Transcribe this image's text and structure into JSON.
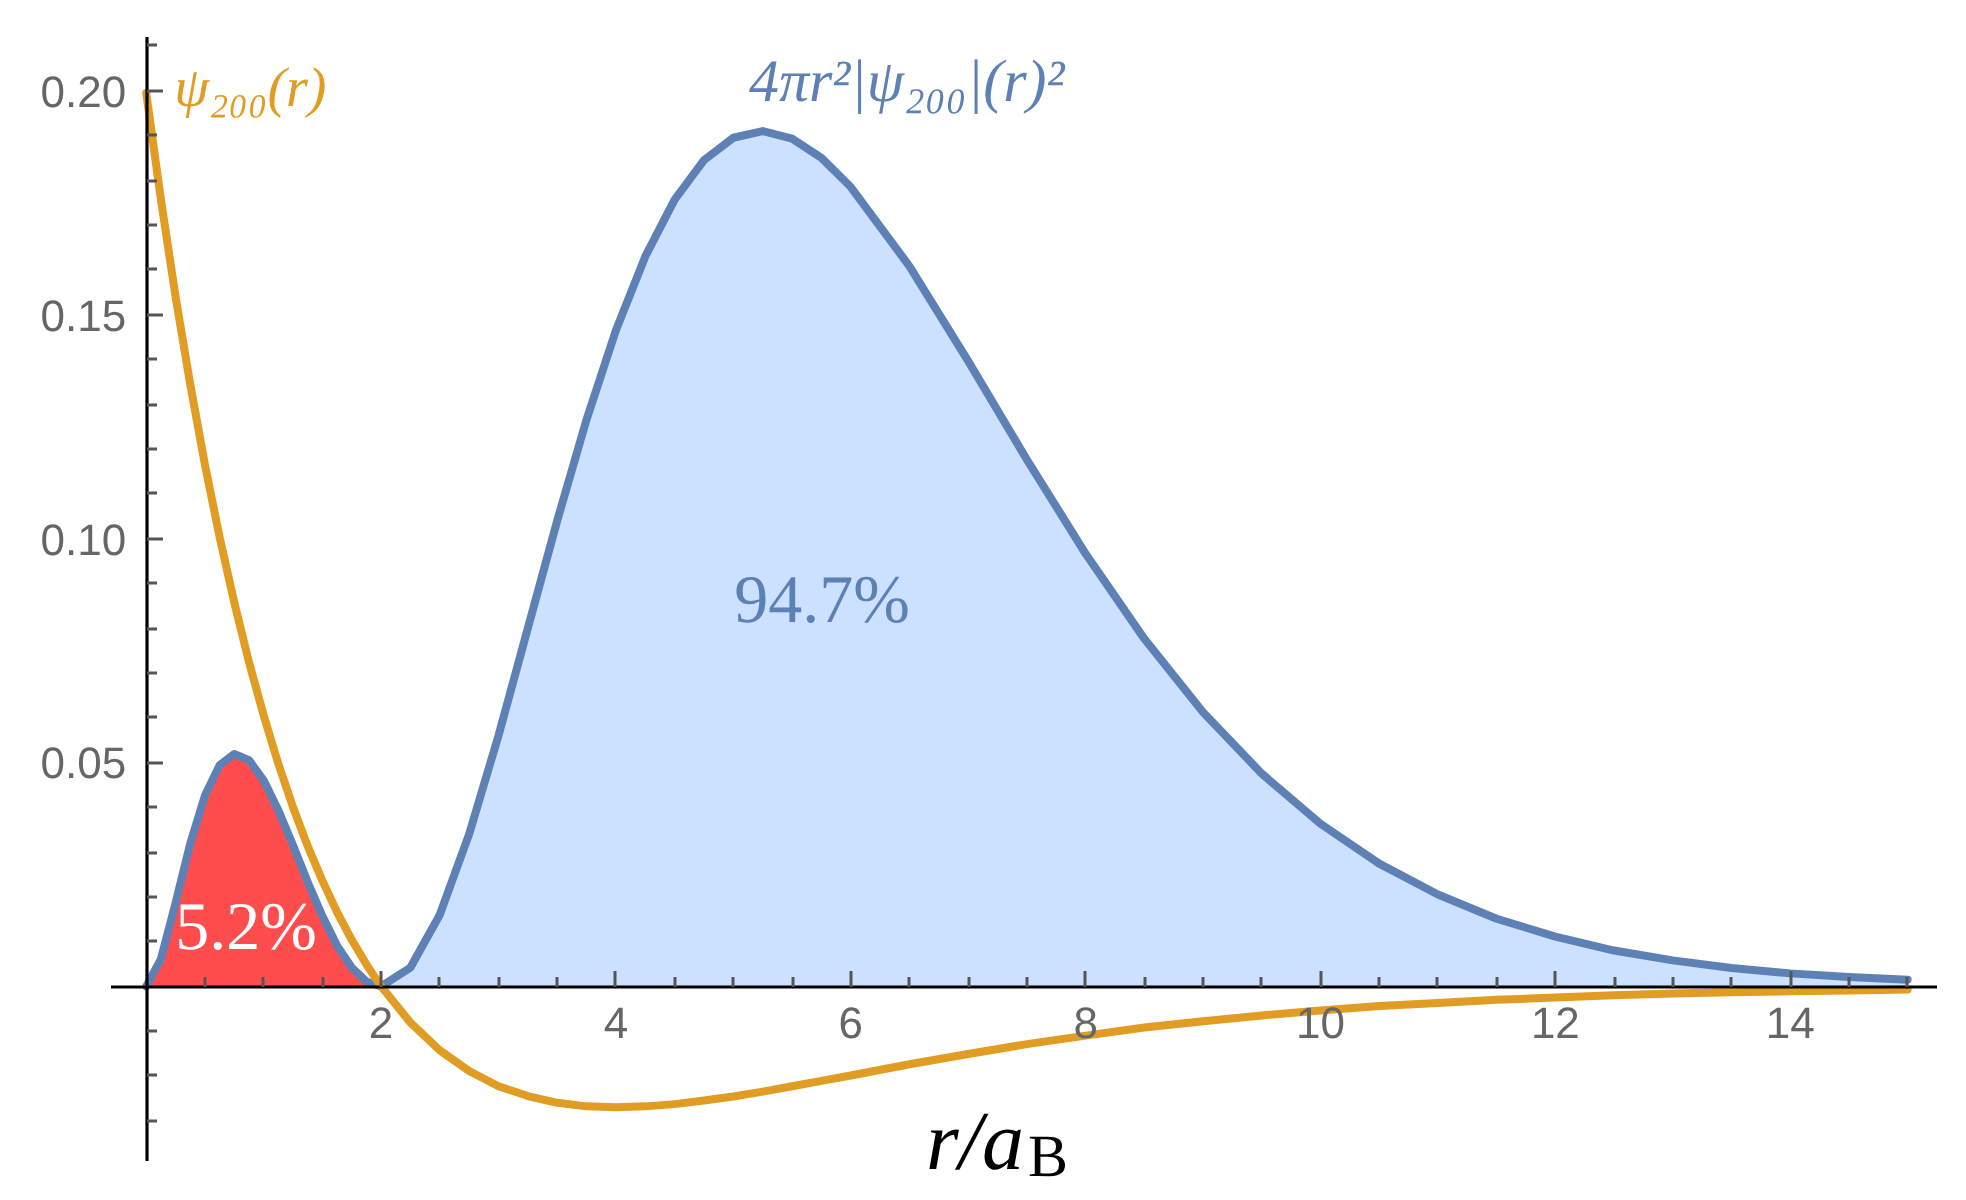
{
  "chart_data": {
    "type": "line",
    "xlabel": "r/a$_{B}$",
    "x": [
      0,
      0.125,
      0.25,
      0.375,
      0.5,
      0.625,
      0.75,
      0.875,
      1,
      1.125,
      1.25,
      1.375,
      1.5,
      1.625,
      1.75,
      1.875,
      2,
      2.25,
      2.5,
      2.75,
      3,
      3.25,
      3.5,
      3.75,
      4,
      4.25,
      4.5,
      4.75,
      5,
      5.25,
      5.5,
      5.75,
      6,
      6.5,
      7,
      7.5,
      8,
      8.5,
      9,
      9.5,
      10,
      10.5,
      11,
      11.5,
      12,
      12.5,
      13,
      13.5,
      14,
      14.5,
      15
    ],
    "series": [
      {
        "type": "area",
        "color": "#ff4d4d",
        "x": [
          0,
          0.125,
          0.25,
          0.375,
          0.5,
          0.625,
          0.75,
          0.875,
          1,
          1.125,
          1.25,
          1.375,
          1.5,
          1.625,
          1.75,
          1.875,
          2
        ],
        "values": [
          0,
          0.0061,
          0.0186,
          0.0319,
          0.0426,
          0.0494,
          0.0519,
          0.0505,
          0.046,
          0.0393,
          0.0315,
          0.0233,
          0.0157,
          0.0091,
          0.0042,
          0.0011,
          0
        ]
      },
      {
        "type": "area",
        "color": "#cce0ff",
        "x": [
          2,
          2.25,
          2.5,
          2.75,
          3,
          3.25,
          3.5,
          3.75,
          4,
          4.25,
          4.5,
          4.75,
          5,
          5.25,
          5.5,
          5.75,
          6,
          6.5,
          7,
          7.5,
          8,
          8.5,
          9,
          9.5,
          10,
          10.5,
          11,
          11.5,
          12,
          12.5,
          13,
          13.5,
          14,
          14.5,
          15
        ],
        "values": [
          0,
          0.0042,
          0.016,
          0.034,
          0.056,
          0.08,
          0.104,
          0.1266,
          0.1465,
          0.163,
          0.1757,
          0.1845,
          0.1895,
          0.191,
          0.1893,
          0.185,
          0.1785,
          0.1608,
          0.1396,
          0.1176,
          0.0966,
          0.0776,
          0.0612,
          0.0475,
          0.0363,
          0.0274,
          0.0205,
          0.0151,
          0.0111,
          0.008,
          0.0058,
          0.0041,
          0.0029,
          0.0021,
          0.0015
        ]
      },
      {
        "name": "4πr²|ψ₂₀₀|(r)²",
        "color": "#5e81b5",
        "values": [
          0,
          0.0061,
          0.0186,
          0.0319,
          0.0426,
          0.0494,
          0.0519,
          0.0505,
          0.046,
          0.0393,
          0.0315,
          0.0233,
          0.0157,
          0.0091,
          0.0042,
          0.0011,
          0,
          0.0042,
          0.016,
          0.034,
          0.056,
          0.08,
          0.104,
          0.1266,
          0.1465,
          0.163,
          0.1757,
          0.1845,
          0.1895,
          0.191,
          0.1893,
          0.185,
          0.1785,
          0.1608,
          0.1396,
          0.1176,
          0.0966,
          0.0776,
          0.0612,
          0.0475,
          0.0363,
          0.0274,
          0.0205,
          0.0151,
          0.0111,
          0.008,
          0.0058,
          0.0041,
          0.0029,
          0.0021,
          0.0015
        ]
      },
      {
        "name": "ψ₂₀₀(r)",
        "color": "#e19c24",
        "values": [
          0.1995,
          0.1757,
          0.154,
          0.1344,
          0.1165,
          0.1003,
          0.0857,
          0.0724,
          0.0605,
          0.0497,
          0.04,
          0.0313,
          0.0236,
          0.0166,
          0.0104,
          0.0049,
          0,
          -0.0081,
          -0.0143,
          -0.0189,
          -0.0223,
          -0.0245,
          -0.026,
          -0.0268,
          -0.027,
          -0.0268,
          -0.0263,
          -0.0255,
          -0.0246,
          -0.0235,
          -0.0223,
          -0.0211,
          -0.0199,
          -0.0174,
          -0.0151,
          -0.0129,
          -0.011,
          -0.0092,
          -0.0078,
          -0.0065,
          -0.0054,
          -0.0044,
          -0.0037,
          -0.003,
          -0.0025,
          -0.002,
          -0.0016,
          -0.0013,
          -0.0011,
          -0.0009,
          -0.0007
        ]
      }
    ],
    "annotations": [
      "5.2%",
      "94.7%"
    ],
    "xlim": [
      -0.3,
      15.25
    ],
    "ylim": [
      -0.039,
      0.212
    ],
    "xticks": [
      {
        "value": 0.5,
        "label": null
      },
      {
        "value": 1,
        "label": null
      },
      {
        "value": 1.5,
        "label": null
      },
      2,
      {
        "value": 2.5,
        "label": null
      },
      {
        "value": 3,
        "label": null
      },
      {
        "value": 3.5,
        "label": null
      },
      4,
      {
        "value": 4.5,
        "label": null
      },
      {
        "value": 5,
        "label": null
      },
      {
        "value": 5.5,
        "label": null
      },
      6,
      {
        "value": 6.5,
        "label": null
      },
      {
        "value": 7,
        "label": null
      },
      {
        "value": 7.5,
        "label": null
      },
      8,
      {
        "value": 8.5,
        "label": null
      },
      {
        "value": 9,
        "label": null
      },
      {
        "value": 9.5,
        "label": null
      },
      10,
      {
        "value": 10.5,
        "label": null
      },
      {
        "value": 11,
        "label": null
      },
      {
        "value": 11.5,
        "label": null
      },
      12,
      {
        "value": 12.5,
        "label": null
      },
      {
        "value": 13,
        "label": null
      },
      {
        "value": 13.5,
        "label": null
      },
      14,
      {
        "value": 14.5,
        "label": null
      },
      {
        "value": 15,
        "label": null
      }
    ],
    "yticks": [
      {
        "value": -0.03,
        "label": null
      },
      {
        "value": -0.02,
        "label": null
      },
      {
        "value": -0.01,
        "label": null
      },
      {
        "value": 0.01,
        "label": null
      },
      {
        "value": 0.02,
        "label": null
      },
      {
        "value": 0.03,
        "label": null
      },
      {
        "value": 0.04,
        "label": null
      },
      {
        "value": 0.05,
        "label": "0.05"
      },
      {
        "value": 0.06,
        "label": null
      },
      {
        "value": 0.07,
        "label": null
      },
      {
        "value": 0.08,
        "label": null
      },
      {
        "value": 0.09,
        "label": null
      },
      {
        "value": 0.1,
        "label": "0.10"
      },
      {
        "value": 0.11,
        "label": null
      },
      {
        "value": 0.12,
        "label": null
      },
      {
        "value": 0.13,
        "label": null
      },
      {
        "value": 0.14,
        "label": null
      },
      {
        "value": 0.15,
        "label": "0.15"
      },
      {
        "value": 0.16,
        "label": null
      },
      {
        "value": 0.17,
        "label": null
      },
      {
        "value": 0.18,
        "label": null
      },
      {
        "value": 0.19,
        "label": null
      },
      {
        "value": 0.2,
        "label": "0.20"
      },
      {
        "value": 0.21,
        "label": null
      }
    ],
    "grid": false
  }
}
